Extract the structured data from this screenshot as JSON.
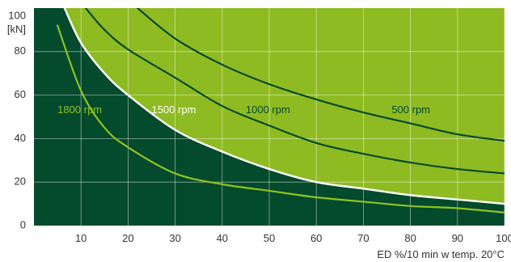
{
  "chart_data": {
    "type": "line",
    "xlabel": "ED %/10 min w temp. 20°C",
    "ylabel": "100 [kN]",
    "ylabel_lines": [
      "100",
      "[kN]"
    ],
    "xlim": [
      0,
      100
    ],
    "ylim": [
      0,
      100
    ],
    "x_ticks": [
      10,
      20,
      30,
      40,
      50,
      60,
      70,
      80,
      90,
      100
    ],
    "y_ticks": [
      0,
      20,
      40,
      60,
      80
    ],
    "grid": true,
    "colors": {
      "dark_region": "#044a2c",
      "light_region": "#8fbb22",
      "line_1800": "#8fc320",
      "line_1500": "#ffffff",
      "line_1000": "#044a2c",
      "line_500": "#044a2c",
      "label_1800": "#8fc320",
      "label_1500": "#ffffff",
      "label_1000": "#044a2c",
      "label_500": "#044a2c"
    },
    "series": [
      {
        "name": "1800 rpm",
        "x": [
          5,
          10,
          15,
          20,
          30,
          40,
          50,
          60,
          70,
          80,
          90,
          100
        ],
        "y": [
          92,
          62,
          45,
          36,
          24,
          19,
          16,
          13,
          11,
          9,
          8,
          6
        ]
      },
      {
        "name": "1500 rpm",
        "x": [
          6.5,
          10,
          15,
          20,
          30,
          40,
          50,
          60,
          70,
          80,
          90,
          100
        ],
        "y": [
          100,
          84,
          70,
          60,
          44,
          34,
          26,
          20,
          17,
          14,
          12,
          10
        ]
      },
      {
        "name": "1000 rpm",
        "x": [
          11,
          15,
          20,
          30,
          40,
          50,
          60,
          70,
          80,
          90,
          100
        ],
        "y": [
          100,
          90,
          81,
          68,
          55,
          46,
          38,
          33,
          29,
          26,
          24
        ]
      },
      {
        "name": "500 rpm",
        "x": [
          22,
          30,
          40,
          50,
          60,
          70,
          80,
          90,
          100
        ],
        "y": [
          100,
          86,
          74,
          65,
          58,
          52,
          47,
          42,
          39
        ]
      }
    ],
    "annotations": [
      {
        "text": "1800 rpm",
        "x": 5,
        "y": 53,
        "series": "1800 rpm"
      },
      {
        "text": "1500 rpm",
        "x": 25,
        "y": 53,
        "series": "1500 rpm"
      },
      {
        "text": "1000 rpm",
        "x": 45,
        "y": 53,
        "series": "1000 rpm"
      },
      {
        "text": "500 rpm",
        "x": 76,
        "y": 53,
        "series": "500 rpm"
      }
    ]
  }
}
